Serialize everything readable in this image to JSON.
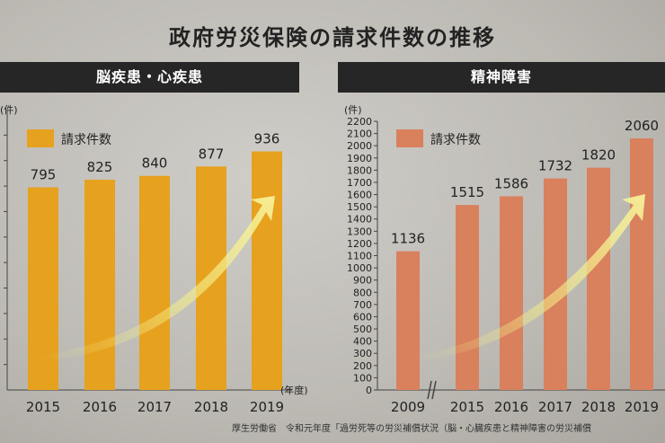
{
  "title": "政府労災保険の請求件数の推移",
  "footer_source": "厚生労働省　令和元年度「過労死等の労災補償状況（脳・心臓疾患と精神障害の労災補償",
  "colors": {
    "left_bar": "#e6a11f",
    "right_bar": "#d9805d",
    "header_bg": "#262626",
    "arrow": "#f4ee86"
  },
  "chart_data": [
    {
      "type": "bar",
      "title": "脳疾患・心疾患",
      "legend": "請求件数",
      "ylabel": "(件)",
      "xlabel": "(年度)",
      "categories": [
        "2015",
        "2016",
        "2017",
        "2018",
        "2019"
      ],
      "values": [
        795,
        825,
        840,
        877,
        936
      ],
      "ylim": [
        0,
        1100
      ]
    },
    {
      "type": "bar",
      "title": "精神障害",
      "legend": "請求件数",
      "ylabel": "(件)",
      "categories": [
        "2009",
        "2015",
        "2016",
        "2017",
        "2018",
        "2019"
      ],
      "values": [
        1136,
        1515,
        1586,
        1732,
        1820,
        2060
      ],
      "yticks": [
        0,
        100,
        200,
        300,
        400,
        500,
        600,
        700,
        800,
        900,
        1000,
        1100,
        1200,
        1300,
        1400,
        1500,
        1600,
        1700,
        1800,
        1900,
        2000,
        2100,
        2200
      ],
      "ylim": [
        0,
        2200
      ]
    }
  ]
}
